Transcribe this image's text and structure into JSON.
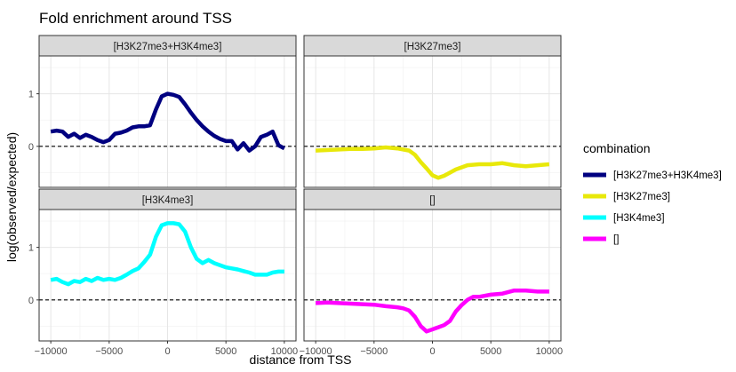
{
  "chart_data": {
    "type": "line",
    "title": "Fold enrichment around TSS",
    "xlabel": "distance from TSS",
    "ylabel": "log(observed/expected)",
    "xlim": [
      -11000,
      11000
    ],
    "ylim": [
      -0.78,
      1.72
    ],
    "xticks": [
      -10000,
      -5000,
      0,
      5000,
      10000
    ],
    "xtick_labels": [
      "−10000",
      "−5000",
      "0",
      "5000",
      "10000"
    ],
    "yticks": [
      0,
      1
    ],
    "ytick_labels": [
      "0",
      "1"
    ],
    "reference_line": {
      "y": 0,
      "style": "dashed",
      "color": "#000000"
    },
    "grid": true,
    "facets": [
      "[H3K27me3+H3K4me3]",
      "[H3K27me3]",
      "[H3K4me3]",
      "[]"
    ],
    "legend": {
      "title": "combination",
      "placement": "right",
      "entries": [
        "[H3K27me3+H3K4me3]",
        "[H3K27me3]",
        "[H3K4me3]",
        "[]"
      ]
    },
    "series": [
      {
        "name": "[H3K27me3+H3K4me3]",
        "color": "#000080",
        "x": [
          -10000,
          -9500,
          -9000,
          -8500,
          -8000,
          -7500,
          -7000,
          -6500,
          -6000,
          -5500,
          -5000,
          -4500,
          -4000,
          -3500,
          -3000,
          -2500,
          -2000,
          -1500,
          -1000,
          -500,
          0,
          500,
          1000,
          1500,
          2000,
          2500,
          3000,
          3500,
          4000,
          4500,
          5000,
          5500,
          6000,
          6500,
          7000,
          7500,
          8000,
          8500,
          9000,
          9500,
          10000
        ],
        "y": [
          0.28,
          0.3,
          0.28,
          0.18,
          0.24,
          0.16,
          0.22,
          0.18,
          0.12,
          0.08,
          0.12,
          0.24,
          0.26,
          0.3,
          0.36,
          0.38,
          0.38,
          0.4,
          0.7,
          0.95,
          1.0,
          0.98,
          0.94,
          0.8,
          0.64,
          0.5,
          0.38,
          0.28,
          0.2,
          0.14,
          0.1,
          0.1,
          -0.06,
          0.06,
          -0.08,
          0.0,
          0.18,
          0.22,
          0.28,
          0.02,
          -0.04
        ]
      },
      {
        "name": "[H3K27me3]",
        "color": "#e8e80a",
        "x": [
          -10000,
          -9000,
          -8000,
          -7000,
          -6000,
          -5000,
          -4000,
          -3000,
          -2000,
          -1500,
          -1000,
          -500,
          0,
          500,
          1000,
          2000,
          3000,
          4000,
          5000,
          6000,
          7000,
          8000,
          9000,
          10000
        ],
        "y": [
          -0.08,
          -0.07,
          -0.06,
          -0.05,
          -0.05,
          -0.04,
          -0.02,
          -0.04,
          -0.08,
          -0.16,
          -0.3,
          -0.42,
          -0.55,
          -0.6,
          -0.56,
          -0.44,
          -0.36,
          -0.34,
          -0.34,
          -0.32,
          -0.36,
          -0.38,
          -0.36,
          -0.34
        ]
      },
      {
        "name": "[H3K4me3]",
        "color": "#00ffff",
        "x": [
          -10000,
          -9500,
          -9000,
          -8500,
          -8000,
          -7500,
          -7000,
          -6500,
          -6000,
          -5500,
          -5000,
          -4500,
          -4000,
          -3500,
          -3000,
          -2500,
          -2000,
          -1500,
          -1000,
          -500,
          0,
          500,
          1000,
          1500,
          2000,
          2500,
          3000,
          3500,
          4000,
          4500,
          5000,
          5500,
          6000,
          6500,
          7000,
          7500,
          8000,
          8500,
          9000,
          9500,
          10000
        ],
        "y": [
          0.38,
          0.4,
          0.34,
          0.3,
          0.36,
          0.34,
          0.4,
          0.36,
          0.42,
          0.38,
          0.4,
          0.38,
          0.42,
          0.48,
          0.55,
          0.6,
          0.72,
          0.86,
          1.2,
          1.42,
          1.46,
          1.46,
          1.44,
          1.3,
          1.0,
          0.78,
          0.7,
          0.76,
          0.7,
          0.66,
          0.62,
          0.6,
          0.58,
          0.55,
          0.52,
          0.48,
          0.48,
          0.48,
          0.52,
          0.54,
          0.54
        ]
      },
      {
        "name": "[]",
        "color": "#ff00ff",
        "x": [
          -10000,
          -9000,
          -8000,
          -7000,
          -6000,
          -5000,
          -4000,
          -3000,
          -2500,
          -2000,
          -1500,
          -1000,
          -500,
          0,
          500,
          1000,
          1500,
          2000,
          2500,
          3000,
          3500,
          4000,
          5000,
          6000,
          7000,
          8000,
          9000,
          10000
        ],
        "y": [
          -0.06,
          -0.05,
          -0.06,
          -0.07,
          -0.08,
          -0.09,
          -0.12,
          -0.14,
          -0.16,
          -0.2,
          -0.32,
          -0.5,
          -0.6,
          -0.56,
          -0.52,
          -0.48,
          -0.4,
          -0.22,
          -0.1,
          0.0,
          0.06,
          0.06,
          0.1,
          0.12,
          0.18,
          0.18,
          0.16,
          0.16
        ]
      }
    ]
  }
}
